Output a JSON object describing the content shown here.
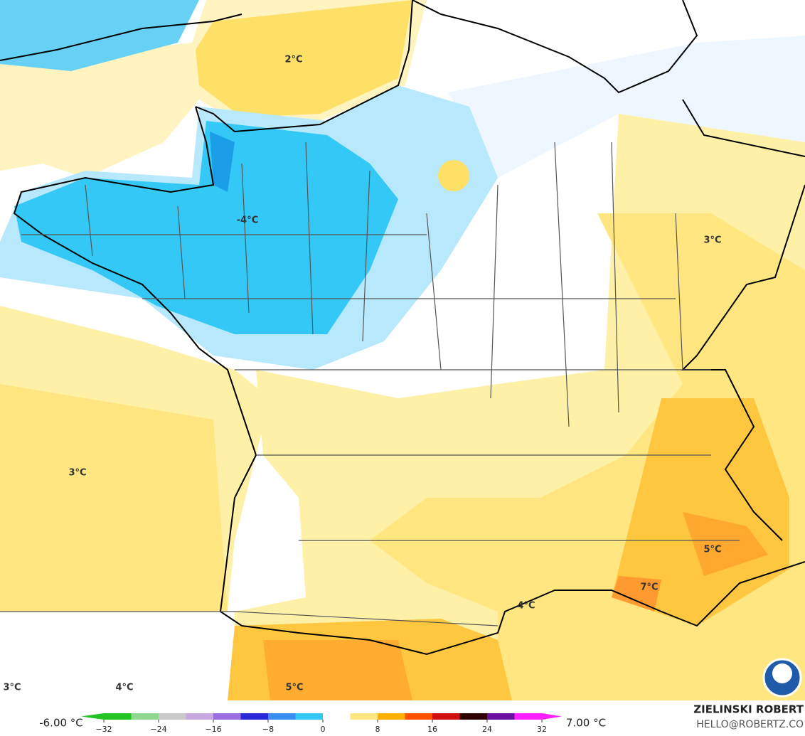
{
  "map": {
    "labels": [
      "2°C",
      "-4°C",
      "3°C",
      "3°C",
      "5°C",
      "7°C",
      "4°C",
      "3°C",
      "4°C",
      "5°C"
    ],
    "colorbar": {
      "min_label": "-6.00 °C",
      "max_label": "7.00 °C",
      "lim": [
        -32,
        32
      ],
      "ticks": [
        {
          "value": -32,
          "label": "−32"
        },
        {
          "value": -24,
          "label": "−24"
        },
        {
          "value": -16,
          "label": "−16"
        },
        {
          "value": -8,
          "label": "−8"
        },
        0,
        8,
        16,
        24,
        32
      ],
      "colors": [
        "#22c322",
        "#8fd88f",
        "#c9c9c9",
        "#c8a8e0",
        "#9a6ee0",
        "#2a2ad8",
        "#3a8ef0",
        "#33c8f5",
        "#ffffff",
        "#ffe680",
        "#ffb000",
        "#ff5000",
        "#d01010",
        "#300000",
        "#6a10a0",
        "#ff20ff"
      ]
    },
    "credit": {
      "name": "ZIELINSKI ROBERT",
      "contact": "HELLO@ROBERTZ.CO"
    }
  }
}
